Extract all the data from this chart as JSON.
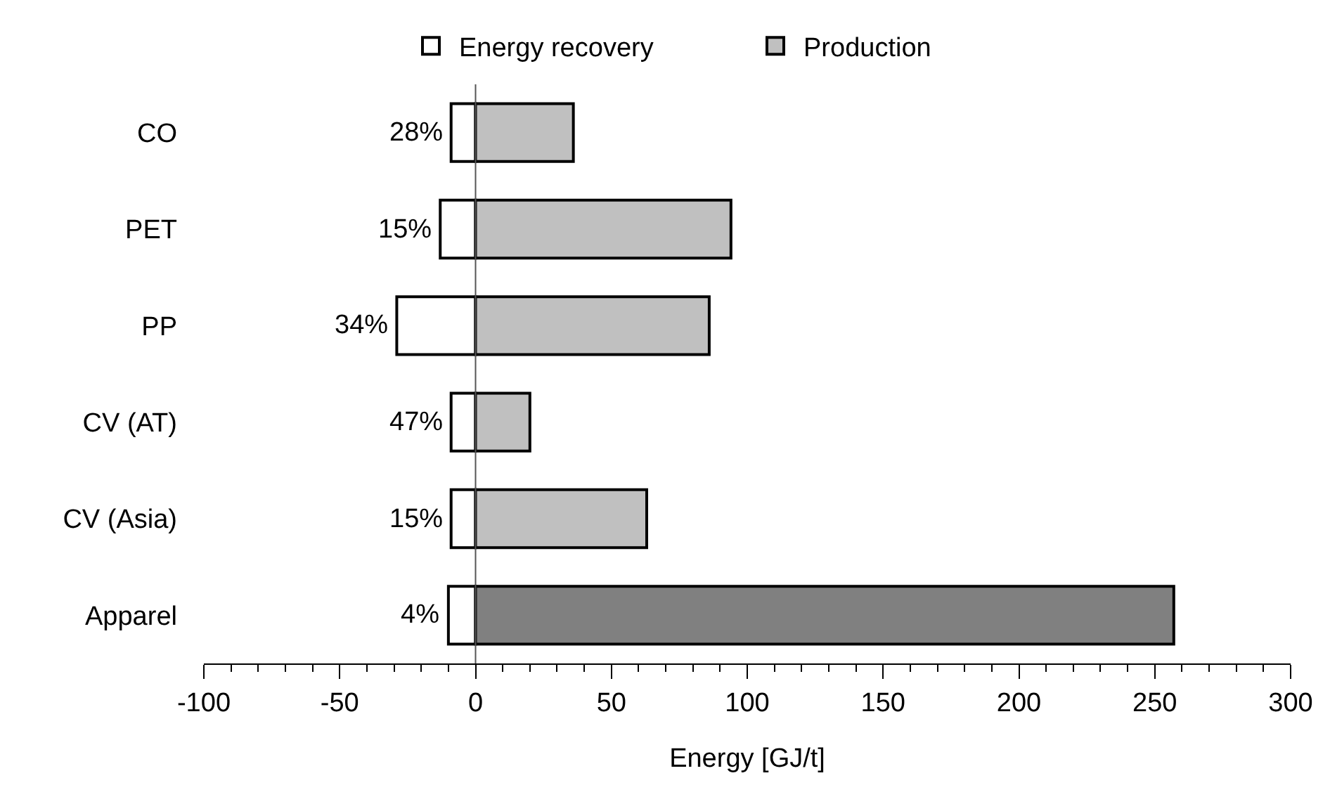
{
  "chart_data": {
    "type": "bar",
    "orientation": "horizontal",
    "stacked": true,
    "categories": [
      "CO",
      "PET",
      "PP",
      "CV (AT)",
      "CV (Asia)",
      "Apparel"
    ],
    "series": [
      {
        "name": "Energy recovery",
        "color": "#ffffff",
        "values": [
          -9,
          -13,
          -29,
          -9,
          -9,
          -10
        ]
      },
      {
        "name": "Production",
        "color": "#c0c0c0",
        "colors": [
          null,
          null,
          null,
          null,
          null,
          "#808080"
        ],
        "values": [
          36,
          94,
          86,
          20,
          63,
          257
        ]
      }
    ],
    "annotations": [
      {
        "text": "28%",
        "x": -9,
        "y": "CO"
      },
      {
        "text": "15%",
        "x": -13,
        "y": "PET"
      },
      {
        "text": "34%",
        "x": -29,
        "y": "PP"
      },
      {
        "text": "47%",
        "x": -9,
        "y": "CV (AT)"
      },
      {
        "text": "15%",
        "x": -9,
        "y": "CV (Asia)"
      },
      {
        "text": "4%",
        "x": -10,
        "y": "Apparel"
      }
    ],
    "ref_lines": [
      {
        "axis": "x",
        "value": 0,
        "color": "#555555"
      }
    ],
    "xlabel": "Energy [GJ/t]",
    "xlim": [
      -100,
      300
    ],
    "xticks": [
      -100,
      {
        "value": -90,
        "label": null
      },
      {
        "value": -80,
        "label": null
      },
      {
        "value": -70,
        "label": null
      },
      {
        "value": -60,
        "label": null
      },
      -50,
      {
        "value": -40,
        "label": null
      },
      {
        "value": -30,
        "label": null
      },
      {
        "value": -20,
        "label": null
      },
      {
        "value": -10,
        "label": null
      },
      0,
      {
        "value": 10,
        "label": null
      },
      {
        "value": 20,
        "label": null
      },
      {
        "value": 30,
        "label": null
      },
      {
        "value": 40,
        "label": null
      },
      50,
      {
        "value": 60,
        "label": null
      },
      {
        "value": 70,
        "label": null
      },
      {
        "value": 80,
        "label": null
      },
      {
        "value": 90,
        "label": null
      },
      100,
      {
        "value": 110,
        "label": null
      },
      {
        "value": 120,
        "label": null
      },
      {
        "value": 130,
        "label": null
      },
      {
        "value": 140,
        "label": null
      },
      150,
      {
        "value": 160,
        "label": null
      },
      {
        "value": 170,
        "label": null
      },
      {
        "value": 180,
        "label": null
      },
      {
        "value": 190,
        "label": null
      },
      200,
      {
        "value": 210,
        "label": null
      },
      {
        "value": 220,
        "label": null
      },
      {
        "value": 230,
        "label": null
      },
      {
        "value": 240,
        "label": null
      },
      250,
      {
        "value": 260,
        "label": null
      },
      {
        "value": 270,
        "label": null
      },
      {
        "value": 280,
        "label": null
      },
      {
        "value": 290,
        "label": null
      },
      300
    ],
    "legend": "top"
  }
}
